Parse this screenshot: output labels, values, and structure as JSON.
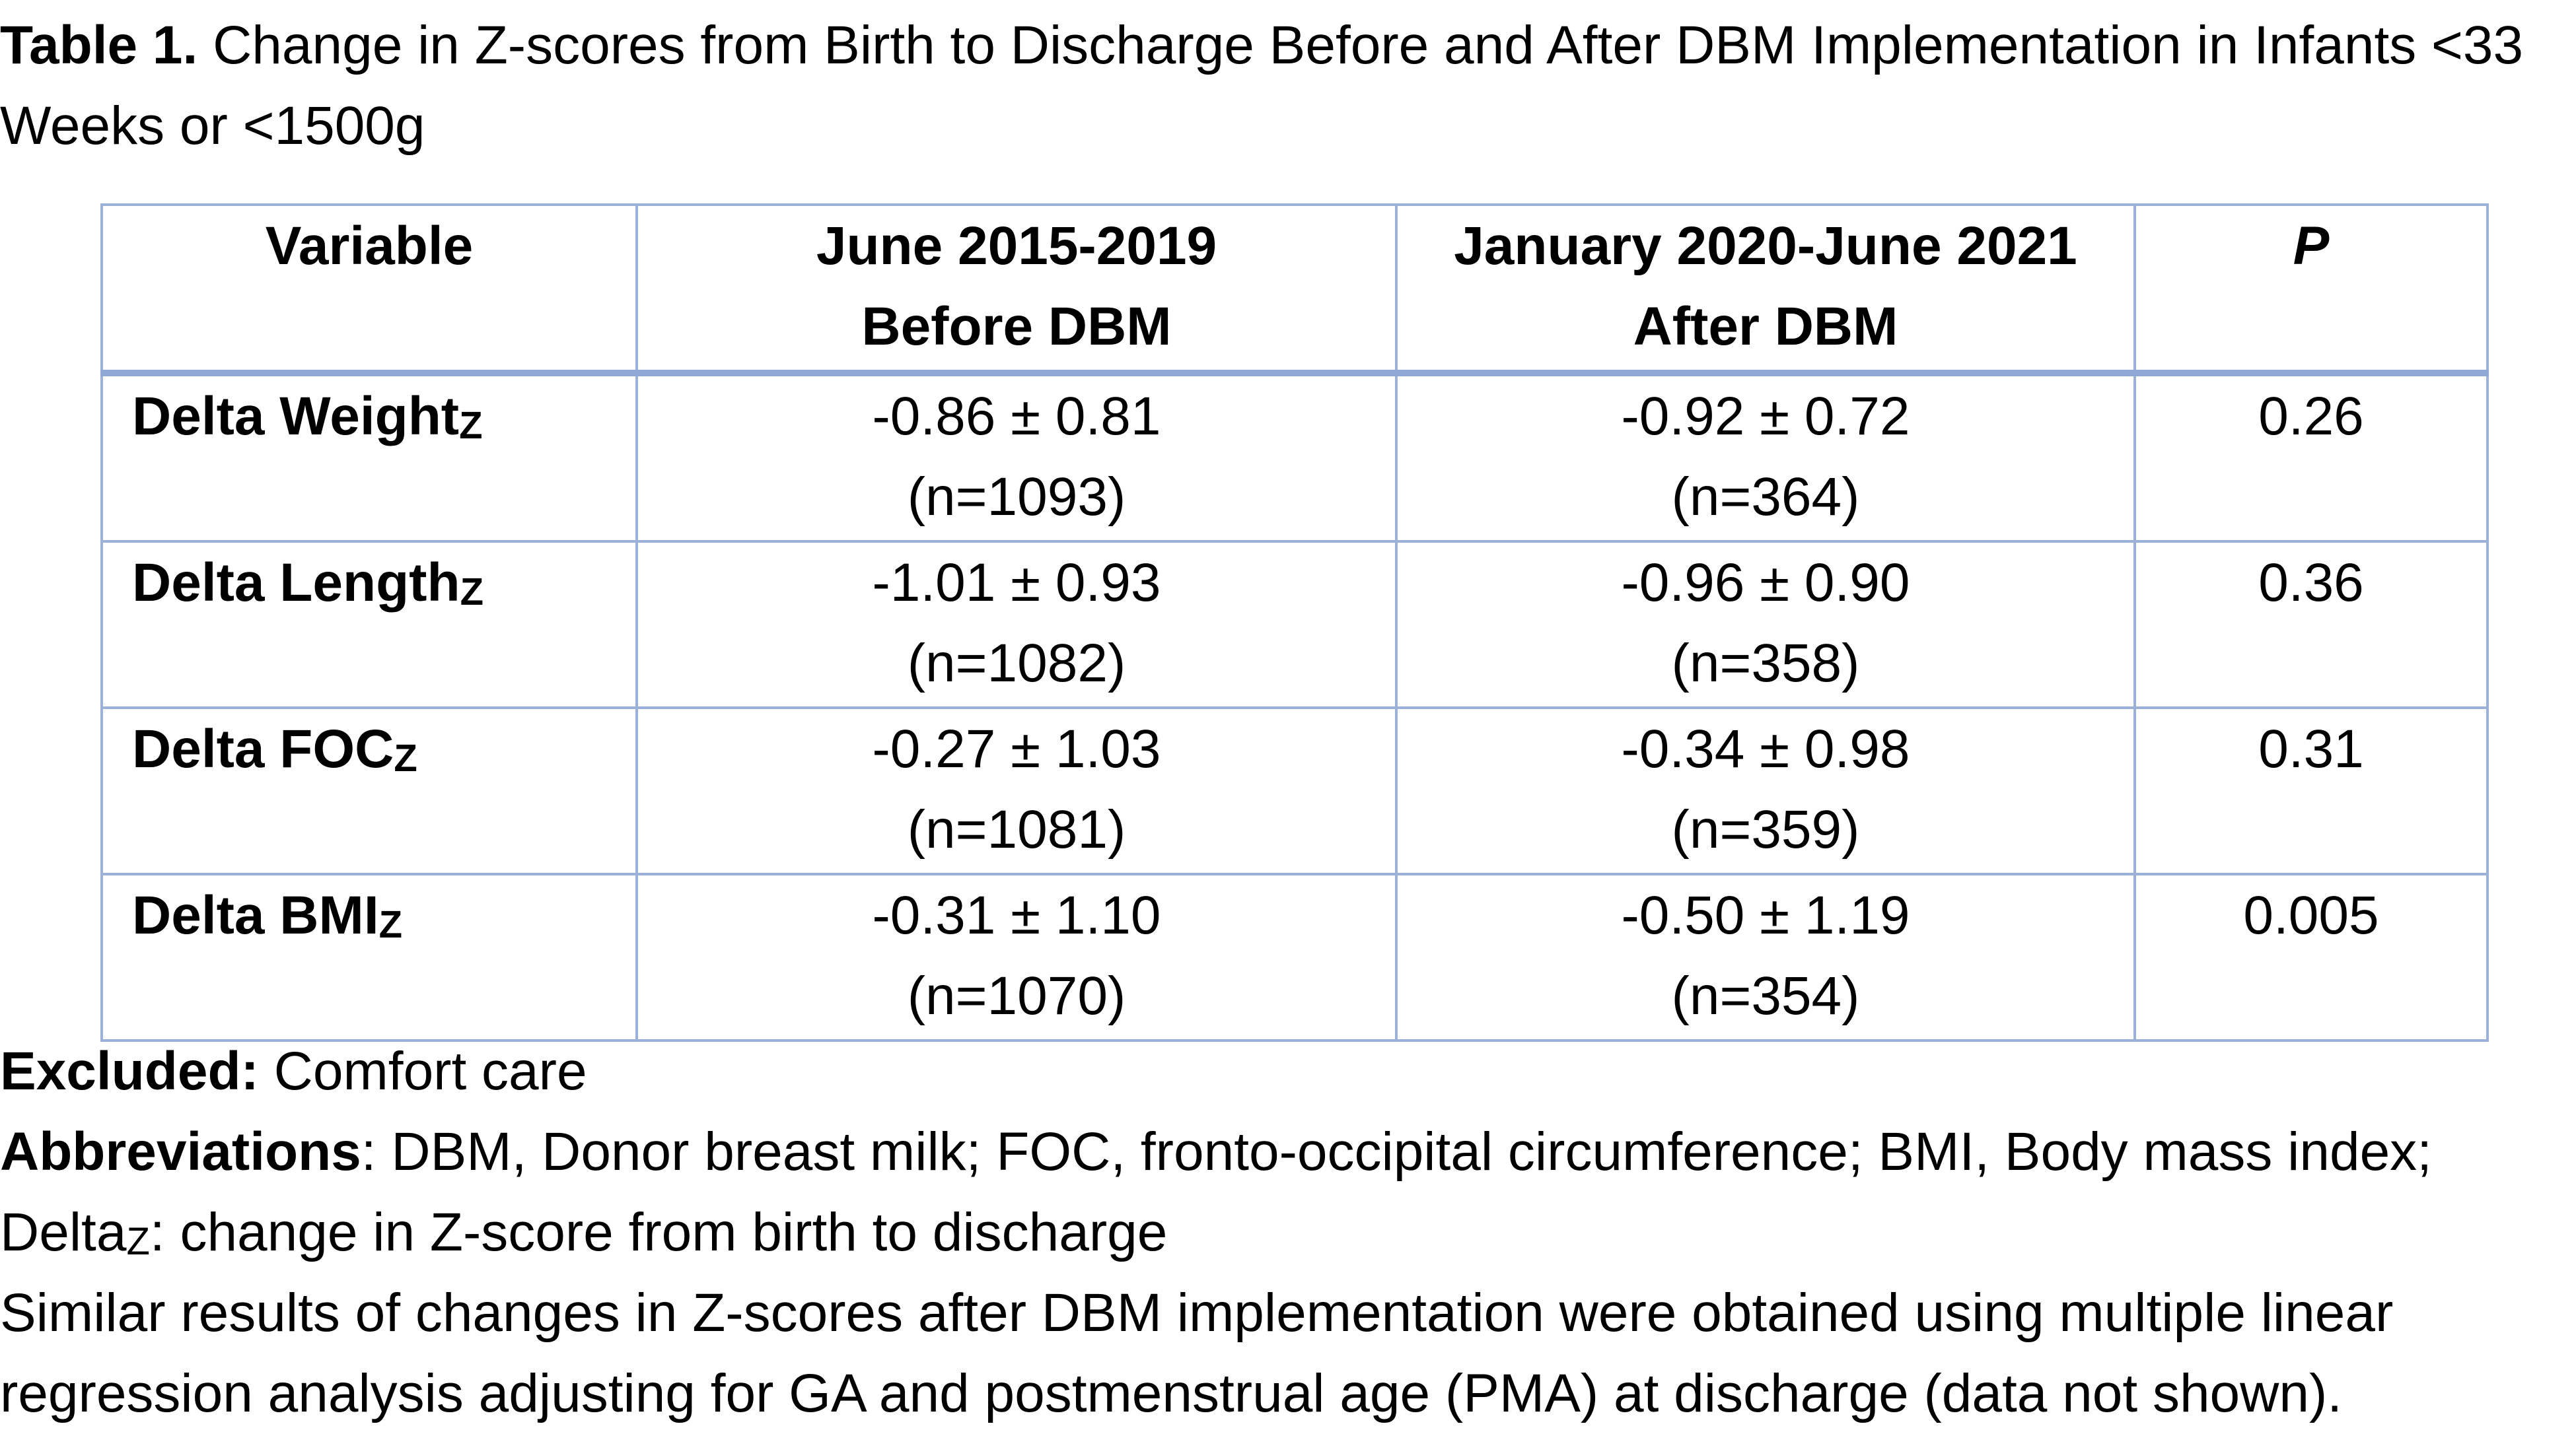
{
  "caption": {
    "label": "Table 1.",
    "text": "Change in Z-scores from Birth to Discharge Before and After DBM Implementation in Infants <33 Weeks or <1500g"
  },
  "table": {
    "headers": [
      {
        "line1": "Variable",
        "line2": ""
      },
      {
        "line1": "June 2015-2019",
        "line2": "Before DBM"
      },
      {
        "line1": "January 2020-June 2021",
        "line2": "After DBM"
      },
      {
        "line1": "P",
        "line2": ""
      }
    ],
    "rows": [
      {
        "variable": "Delta Weight",
        "subscript": "Z",
        "before_value": "-0.86 ± 0.81",
        "before_n": "(n=1093)",
        "after_value": "-0.92 ± 0.72",
        "after_n": "(n=364)",
        "p": "0.26"
      },
      {
        "variable": "Delta Length",
        "subscript": "Z",
        "before_value": "-1.01 ± 0.93",
        "before_n": "(n=1082)",
        "after_value": "-0.96 ± 0.90",
        "after_n": "(n=358)",
        "p": "0.36"
      },
      {
        "variable": "Delta FOC",
        "subscript": "Z",
        "before_value": "-0.27 ± 1.03",
        "before_n": "(n=1081)",
        "after_value": "-0.34 ± 0.98",
        "after_n": "(n=359)",
        "p": "0.31"
      },
      {
        "variable": "Delta BMI",
        "subscript": "Z",
        "before_value": "-0.31 ± 1.10",
        "before_n": "(n=1070)",
        "after_value": "-0.50 ± 1.19",
        "after_n": "(n=354)",
        "p": "0.005"
      }
    ]
  },
  "notes": {
    "excluded_label": "Excluded:",
    "excluded_text": " Comfort care",
    "abbrev_label": "Abbreviations",
    "abbrev_text": ": DBM, Donor breast milk; FOC, fronto-occipital circumference; BMI, Body mass index;",
    "delta_word": "Delta",
    "delta_sub": "Z",
    "delta_text": ": change in Z-score from birth to discharge",
    "similar_text": "Similar results of changes in Z-scores after DBM implementation were obtained using multiple linear regression analysis adjusting for GA and postmenstrual age (PMA) at discharge (data not shown)."
  },
  "colors": {
    "border": "#9bb1d8",
    "header_rule": "#8ea8d6",
    "text": "#000000"
  }
}
